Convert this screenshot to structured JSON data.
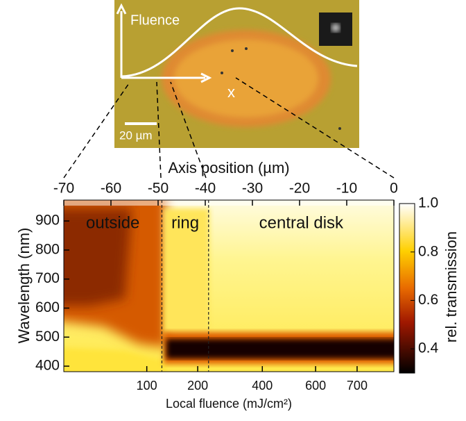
{
  "chart_data": {
    "type": "heatmap",
    "inset_labels": {
      "fluence": "Fluence",
      "x": "x",
      "scale_bar": "20 µm"
    },
    "x_label": "Axis position (µm)",
    "xlim": [
      -70,
      0
    ],
    "xticks": [
      -70,
      -60,
      -50,
      -40,
      -30,
      -20,
      -10,
      0
    ],
    "x2_label": "Local fluence (mJ/cm²)",
    "x2ticks": [
      {
        "value": -52.4,
        "label": "100"
      },
      {
        "value": -41.6,
        "label": "200"
      },
      {
        "value": -27.9,
        "label": "400"
      },
      {
        "value": -16.6,
        "label": "600"
      },
      {
        "value": -7.8,
        "label": "700"
      }
    ],
    "y_label": "Wavelength (nm)",
    "ylim": [
      381,
      972
    ],
    "yticks": [
      400,
      500,
      600,
      700,
      800,
      900
    ],
    "boundaries": [
      -49.2,
      -39.3
    ],
    "regions": [
      "outside",
      "ring",
      "central disk"
    ],
    "colorbar": {
      "label": "rel. transmission",
      "lim": [
        0.3,
        1.0
      ],
      "ticks": [
        0.4,
        0.6,
        0.8,
        {
          "value": 1.0,
          "label": "1.0"
        }
      ]
    }
  }
}
